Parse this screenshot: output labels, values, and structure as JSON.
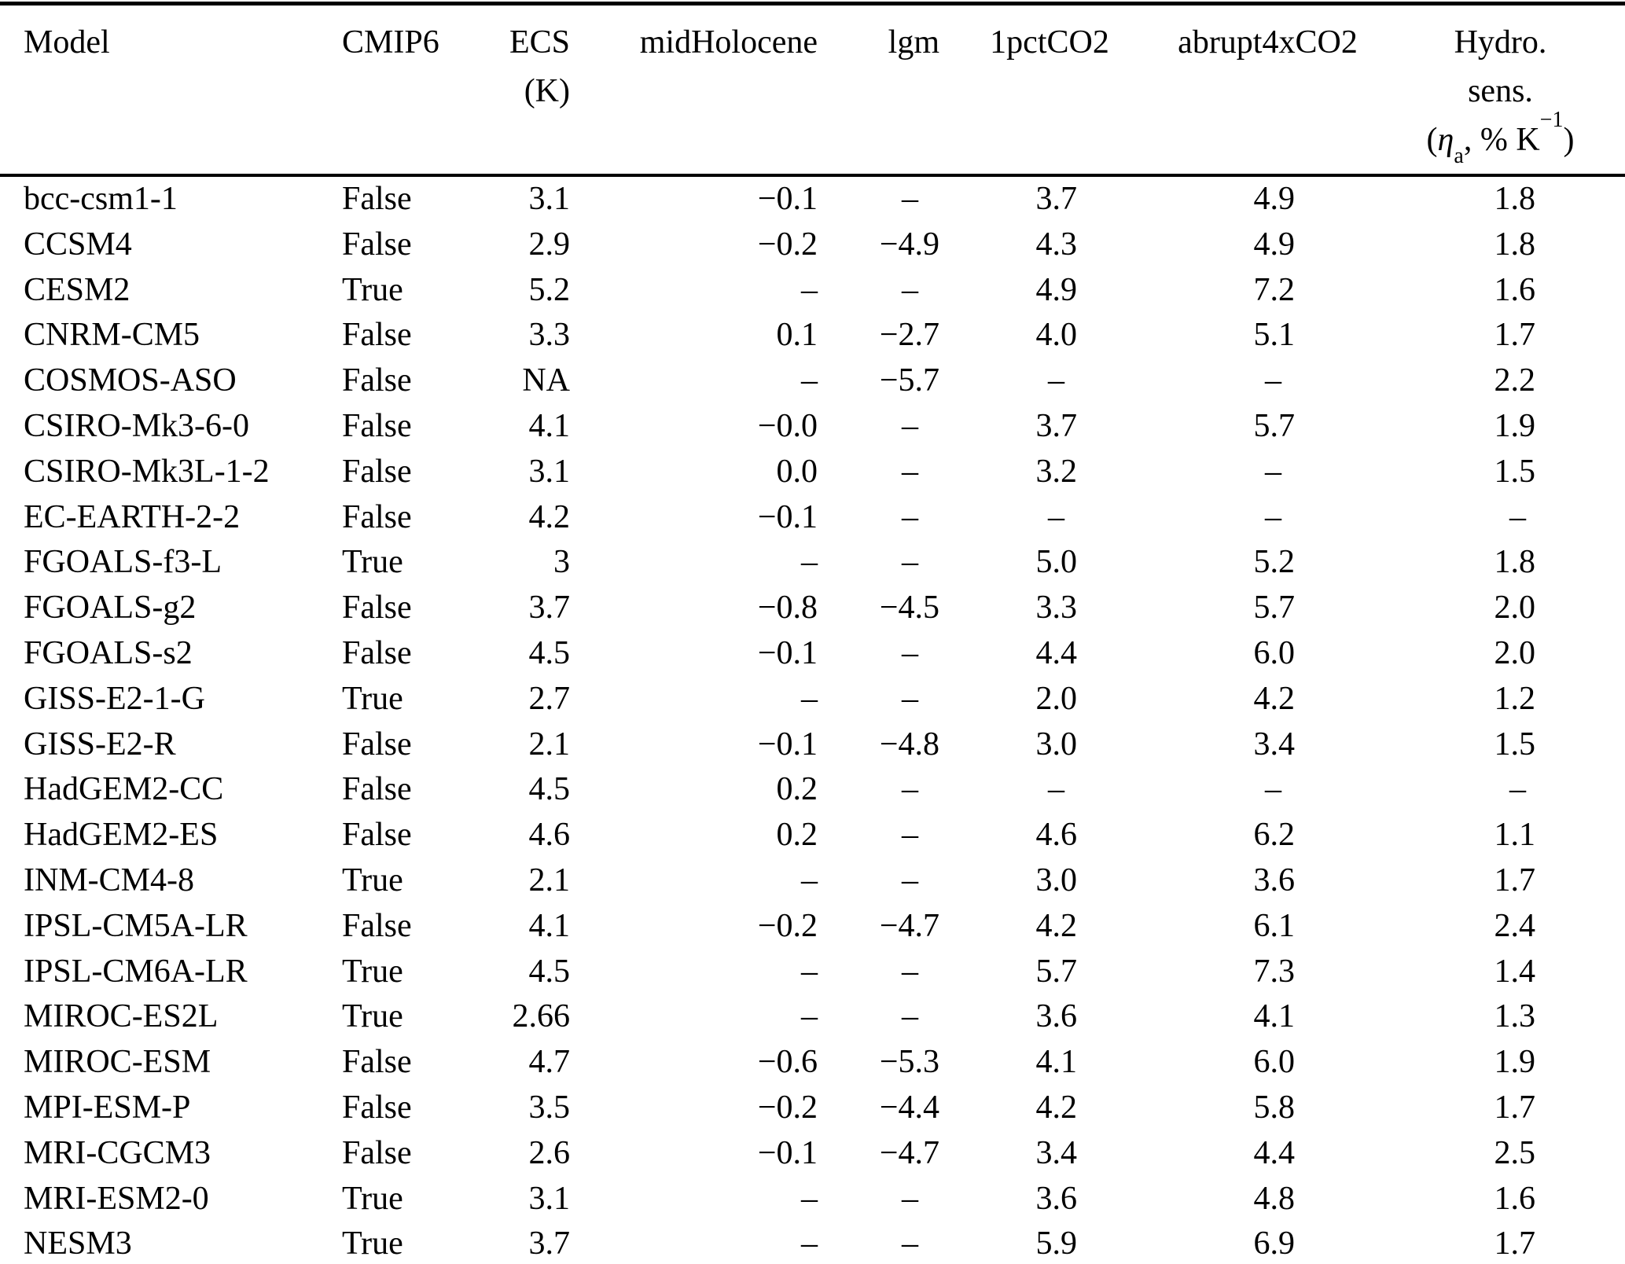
{
  "table": {
    "missing_marker": "–",
    "columns": [
      {
        "id": "model",
        "label": "Model"
      },
      {
        "id": "cmip6",
        "label": "CMIP6"
      },
      {
        "id": "ecs",
        "label": "ECS",
        "label_line2": "(K)"
      },
      {
        "id": "midholocene",
        "label": "midHolocene"
      },
      {
        "id": "lgm",
        "label": "lgm"
      },
      {
        "id": "1pctco2",
        "label": "1pctCO2"
      },
      {
        "id": "abrupt4xco2",
        "label": "abrupt4xCO2"
      },
      {
        "id": "hydro_sens",
        "label": "Hydro.",
        "label_line2": "sens.",
        "unit_parts": {
          "open": "(",
          "eta": "η",
          "sub": "a",
          "mid": ", % K",
          "sup": "−1",
          "close": ")"
        }
      }
    ],
    "rows": [
      [
        "bcc-csm1-1",
        "False",
        "3.1",
        "−0.1",
        "–",
        "3.7",
        "4.9",
        "1.8"
      ],
      [
        "CCSM4",
        "False",
        "2.9",
        "−0.2",
        "−4.9",
        "4.3",
        "4.9",
        "1.8"
      ],
      [
        "CESM2",
        "True",
        "5.2",
        "–",
        "–",
        "4.9",
        "7.2",
        "1.6"
      ],
      [
        "CNRM-CM5",
        "False",
        "3.3",
        "0.1",
        "−2.7",
        "4.0",
        "5.1",
        "1.7"
      ],
      [
        "COSMOS-ASO",
        "False",
        "NA",
        "–",
        "−5.7",
        "–",
        "–",
        "2.2"
      ],
      [
        "CSIRO-Mk3-6-0",
        "False",
        "4.1",
        "−0.0",
        "–",
        "3.7",
        "5.7",
        "1.9"
      ],
      [
        "CSIRO-Mk3L-1-2",
        "False",
        "3.1",
        "0.0",
        "–",
        "3.2",
        "–",
        "1.5"
      ],
      [
        "EC-EARTH-2-2",
        "False",
        "4.2",
        "−0.1",
        "–",
        "–",
        "–",
        "–"
      ],
      [
        "FGOALS-f3-L",
        "True",
        "3",
        "–",
        "–",
        "5.0",
        "5.2",
        "1.8"
      ],
      [
        "FGOALS-g2",
        "False",
        "3.7",
        "−0.8",
        "−4.5",
        "3.3",
        "5.7",
        "2.0"
      ],
      [
        "FGOALS-s2",
        "False",
        "4.5",
        "−0.1",
        "–",
        "4.4",
        "6.0",
        "2.0"
      ],
      [
        "GISS-E2-1-G",
        "True",
        "2.7",
        "–",
        "–",
        "2.0",
        "4.2",
        "1.2"
      ],
      [
        "GISS-E2-R",
        "False",
        "2.1",
        "−0.1",
        "−4.8",
        "3.0",
        "3.4",
        "1.5"
      ],
      [
        "HadGEM2-CC",
        "False",
        "4.5",
        "0.2",
        "–",
        "–",
        "–",
        "–"
      ],
      [
        "HadGEM2-ES",
        "False",
        "4.6",
        "0.2",
        "–",
        "4.6",
        "6.2",
        "1.1"
      ],
      [
        "INM-CM4-8",
        "True",
        "2.1",
        "–",
        "–",
        "3.0",
        "3.6",
        "1.7"
      ],
      [
        "IPSL-CM5A-LR",
        "False",
        "4.1",
        "−0.2",
        "−4.7",
        "4.2",
        "6.1",
        "2.4"
      ],
      [
        "IPSL-CM6A-LR",
        "True",
        "4.5",
        "–",
        "–",
        "5.7",
        "7.3",
        "1.4"
      ],
      [
        "MIROC-ES2L",
        "True",
        "2.66",
        "–",
        "–",
        "3.6",
        "4.1",
        "1.3"
      ],
      [
        "MIROC-ESM",
        "False",
        "4.7",
        "−0.6",
        "−5.3",
        "4.1",
        "6.0",
        "1.9"
      ],
      [
        "MPI-ESM-P",
        "False",
        "3.5",
        "−0.2",
        "−4.4",
        "4.2",
        "5.8",
        "1.7"
      ],
      [
        "MRI-CGCM3",
        "False",
        "2.6",
        "−0.1",
        "−4.7",
        "3.4",
        "4.4",
        "2.5"
      ],
      [
        "MRI-ESM2-0",
        "True",
        "3.1",
        "–",
        "–",
        "3.6",
        "4.8",
        "1.6"
      ],
      [
        "NESM3",
        "True",
        "3.7",
        "–",
        "–",
        "5.9",
        "6.9",
        "1.7"
      ]
    ]
  }
}
